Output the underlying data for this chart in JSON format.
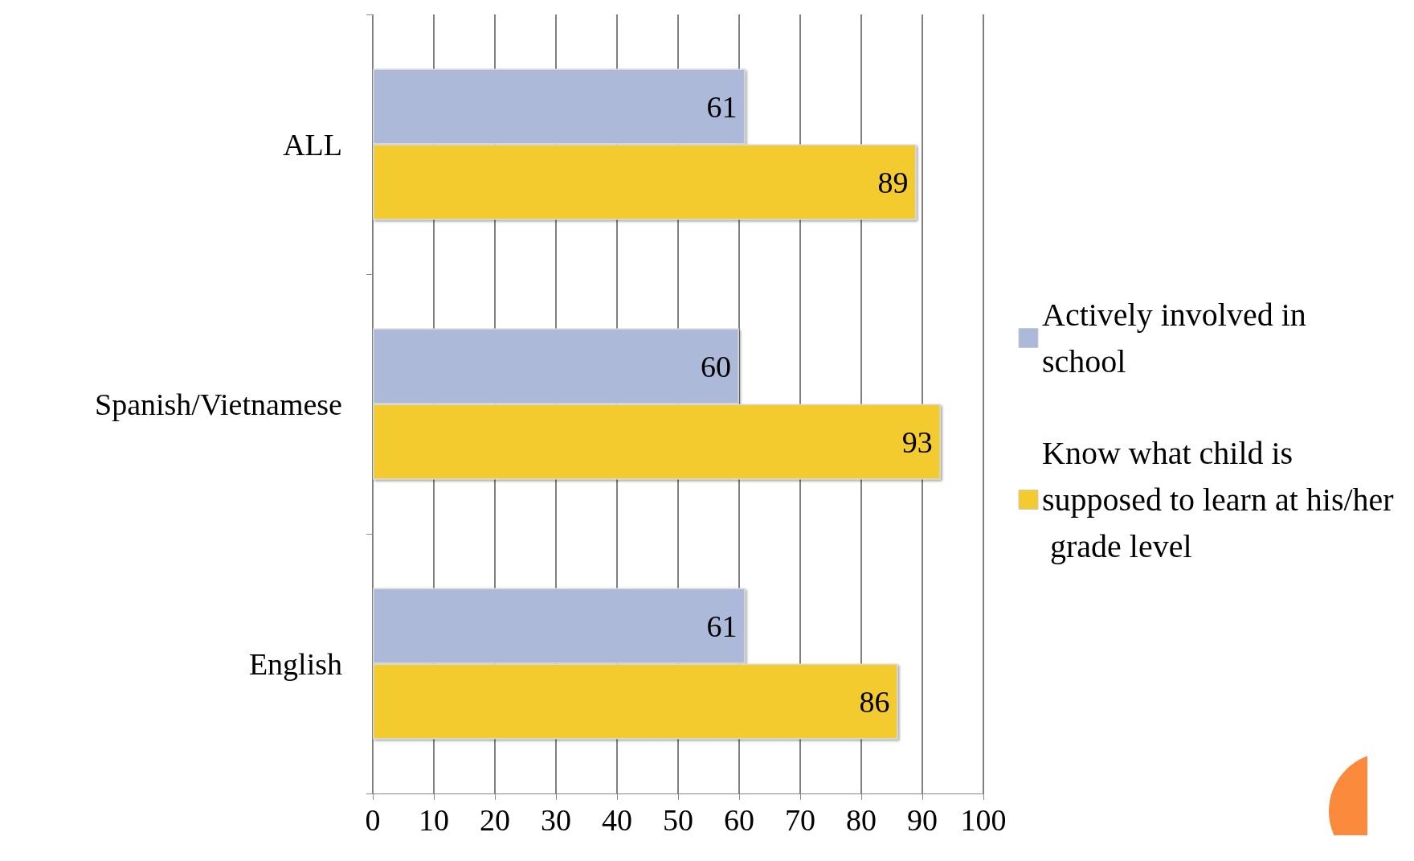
{
  "chart_data": {
    "type": "bar",
    "orientation": "horizontal",
    "categories": [
      "ALL",
      "Spanish/Vietnamese",
      "English"
    ],
    "series": [
      {
        "name": "Actively involved in school",
        "color": "#adb9d8",
        "values": [
          61,
          60,
          61
        ]
      },
      {
        "name": "Know what child is supposed to learn at his/her grade level",
        "color": "#f3cb2e",
        "values": [
          89,
          93,
          86
        ]
      }
    ],
    "xlim": [
      0,
      100
    ],
    "xticks": [
      0,
      10,
      20,
      30,
      40,
      50,
      60,
      70,
      80,
      90,
      100
    ],
    "grid": "x",
    "legend": "right",
    "data_labels": true
  }
}
